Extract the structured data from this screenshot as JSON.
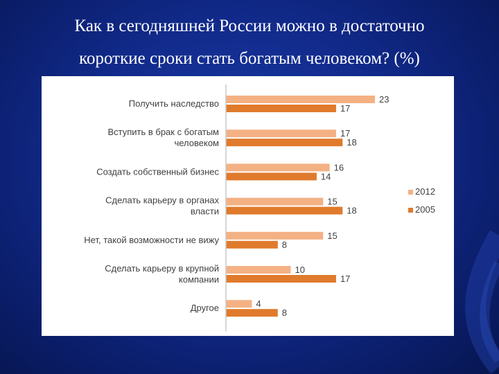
{
  "slide": {
    "title_line1": "Как в сегодняшней России можно в достаточно",
    "title_line2": "короткие сроки стать богатым человеком? (%)"
  },
  "colors": {
    "series_2012": "#f4b183",
    "series_2005": "#e07a2c",
    "axis": "#c8c8c8",
    "text": "#404040"
  },
  "chart_data": {
    "type": "bar",
    "orientation": "horizontal",
    "categories": [
      [
        "Получить наследство"
      ],
      [
        "Вступить в брак с богатым",
        "человеком"
      ],
      [
        "Создать собственный бизнес"
      ],
      [
        "Сделать карьеру в органах",
        "власти"
      ],
      [
        "Нет, такой возможности не вижу"
      ],
      [
        "Сделать карьеру в крупной",
        "компании"
      ],
      [
        "Другое"
      ]
    ],
    "series": [
      {
        "name": "2012",
        "values": [
          23,
          17,
          16,
          15,
          15,
          10,
          4
        ]
      },
      {
        "name": "2005",
        "values": [
          17,
          18,
          14,
          18,
          8,
          17,
          8
        ]
      }
    ],
    "legend": {
      "position": "right",
      "entries": [
        "2012",
        "2005"
      ]
    },
    "xlim": [
      0,
      25
    ],
    "grid": false,
    "data_labels": true
  }
}
